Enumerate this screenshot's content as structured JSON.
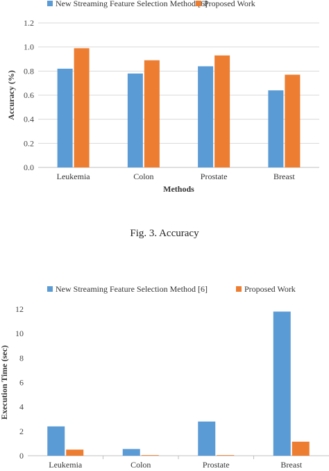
{
  "figures": [
    {
      "caption": "Fig. 3.   Accuracy"
    },
    {
      "caption": ""
    }
  ],
  "chart_data": [
    {
      "type": "bar",
      "title": "",
      "xlabel": "Methods",
      "ylabel": "Accuracy (%)",
      "categories": [
        "Leukemia",
        "Colon",
        "Prostate",
        "Breast"
      ],
      "ylim": [
        0,
        1.2
      ],
      "yticks": [
        "0.0",
        "0.2",
        "0.4",
        "0.6",
        "0.8",
        "1.0",
        "1.2"
      ],
      "grid": true,
      "legend_position": "top",
      "series": [
        {
          "name": "New Streaming Feature Selection Method [6]",
          "values": [
            0.82,
            0.78,
            0.84,
            0.64
          ],
          "color": "#5b9bd5"
        },
        {
          "name": "Proposed Work",
          "values": [
            0.99,
            0.89,
            0.93,
            0.77
          ],
          "color": "#ed7d31"
        }
      ]
    },
    {
      "type": "bar",
      "title": "",
      "xlabel": "",
      "ylabel": "Execution Time (sec)",
      "categories": [
        "Leukemia",
        "Colon",
        "Prostate",
        "Breast"
      ],
      "ylim": [
        0,
        12
      ],
      "yticks": [
        "0",
        "2",
        "4",
        "6",
        "8",
        "10",
        "12"
      ],
      "grid": false,
      "legend_position": "top",
      "series": [
        {
          "name": "New Streaming Feature Selection Method [6]",
          "values": [
            2.4,
            0.55,
            2.8,
            11.8
          ],
          "color": "#5b9bd5"
        },
        {
          "name": "Proposed Work",
          "values": [
            0.5,
            0.05,
            0.05,
            1.15
          ],
          "color": "#ed7d31"
        }
      ]
    }
  ]
}
